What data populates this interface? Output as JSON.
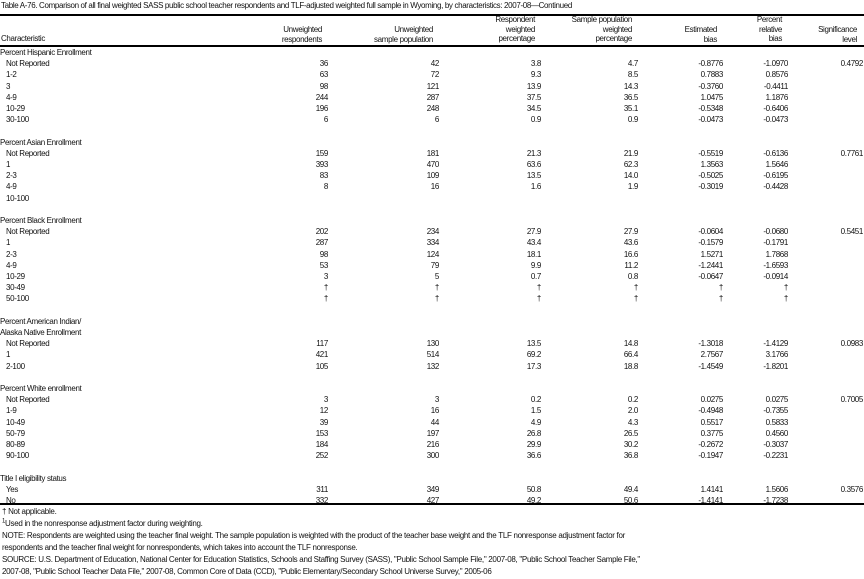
{
  "title": "Table A-76. Comparison of all final weighted SASS public school teacher respondents and TLF-adjusted weighted full sample in Wyoming, by characteristics: 2007-08—Continued",
  "headers": {
    "characteristic": "Characteristic",
    "respondents": [
      "Unweighted",
      "respondents"
    ],
    "sample_population": [
      "Unweighted",
      "sample population"
    ],
    "respondent_pct": [
      "Respondent",
      "weighted",
      "percentage"
    ],
    "sample_pct": [
      "Sample population",
      "weighted",
      "percentage"
    ],
    "est_bias": [
      "Estimated",
      "bias"
    ],
    "rel_bias": [
      "Percent",
      "relative",
      "bias"
    ],
    "significance": [
      "Significance",
      "level"
    ]
  },
  "sections": [
    {
      "label": [
        "Percent Hispanic Enrollment"
      ],
      "rows": [
        [
          "Not Reported",
          "36",
          "42",
          "3.8",
          "4.7",
          "-0.8776",
          "-1.0970",
          "0.4792"
        ],
        [
          "1-2",
          "63",
          "72",
          "9.3",
          "8.5",
          "0.7883",
          "0.8576",
          ""
        ],
        [
          "3",
          "98",
          "121",
          "13.9",
          "14.3",
          "-0.3760",
          "-0.4411",
          ""
        ],
        [
          "4-9",
          "244",
          "287",
          "37.5",
          "36.5",
          "1.0475",
          "1.1876",
          ""
        ],
        [
          "10-29",
          "196",
          "248",
          "34.5",
          "35.1",
          "-0.5348",
          "-0.6406",
          ""
        ],
        [
          "30-100",
          "6",
          "6",
          "0.9",
          "0.9",
          "-0.0473",
          "-0.0473",
          ""
        ]
      ]
    },
    {
      "label": [
        "Percent Asian Enrollment"
      ],
      "rows": [
        [
          "Not Reported",
          "159",
          "181",
          "21.3",
          "21.9",
          "-0.5519",
          "-0.6136",
          "0.7761"
        ],
        [
          "1",
          "393",
          "470",
          "63.6",
          "62.3",
          "1.3563",
          "1.5646",
          ""
        ],
        [
          "2-3",
          "83",
          "109",
          "13.5",
          "14.0",
          "-0.5025",
          "-0.6195",
          ""
        ],
        [
          "4-9",
          "8",
          "16",
          "1.6",
          "1.9",
          "-0.3019",
          "-0.4428",
          ""
        ],
        [
          "10-100",
          "",
          "",
          "",
          "",
          "",
          "",
          ""
        ]
      ]
    },
    {
      "label": [
        "Percent Black Enrollment"
      ],
      "rows": [
        [
          "Not Reported",
          "202",
          "234",
          "27.9",
          "27.9",
          "-0.0604",
          "-0.0680",
          "0.5451"
        ],
        [
          "1",
          "287",
          "334",
          "43.4",
          "43.6",
          "-0.1579",
          "-0.1791",
          ""
        ],
        [
          "2-3",
          "98",
          "124",
          "18.1",
          "16.6",
          "1.5271",
          "1.7868",
          ""
        ],
        [
          "4-9",
          "53",
          "79",
          "9.9",
          "11.2",
          "-1.2441",
          "-1.6593",
          ""
        ],
        [
          "10-29",
          "3",
          "5",
          "0.7",
          "0.8",
          "-0.0647",
          "-0.0914",
          ""
        ],
        [
          "30-49",
          "†",
          "†",
          "†",
          "†",
          "†",
          "†",
          ""
        ],
        [
          "50-100",
          "†",
          "†",
          "†",
          "†",
          "†",
          "†",
          ""
        ]
      ]
    },
    {
      "label": [
        "Percent American Indian/",
        "Alaska Native Enrollment"
      ],
      "rows": [
        [
          "Not Reported",
          "117",
          "130",
          "13.5",
          "14.8",
          "-1.3018",
          "-1.4129",
          "0.0983"
        ],
        [
          "1",
          "421",
          "514",
          "69.2",
          "66.4",
          "2.7567",
          "3.1766",
          ""
        ],
        [
          "2-100",
          "105",
          "132",
          "17.3",
          "18.8",
          "-1.4549",
          "-1.8201",
          ""
        ]
      ]
    },
    {
      "label": [
        "Percent White enrollment"
      ],
      "rows": [
        [
          "Not Reported",
          "3",
          "3",
          "0.2",
          "0.2",
          "0.0275",
          "0.0275",
          "0.7005"
        ],
        [
          "1-9",
          "12",
          "16",
          "1.5",
          "2.0",
          "-0.4948",
          "-0.7355",
          ""
        ],
        [
          "10-49",
          "39",
          "44",
          "4.9",
          "4.3",
          "0.5517",
          "0.5833",
          ""
        ],
        [
          "50-79",
          "153",
          "197",
          "26.8",
          "26.5",
          "0.3775",
          "0.4560",
          ""
        ],
        [
          "80-89",
          "184",
          "216",
          "29.9",
          "30.2",
          "-0.2672",
          "-0.3037",
          ""
        ],
        [
          "90-100",
          "252",
          "300",
          "36.6",
          "36.8",
          "-0.1947",
          "-0.2231",
          ""
        ]
      ]
    },
    {
      "label": [
        "Title I eligibility status"
      ],
      "rows": [
        [
          "Yes",
          "311",
          "349",
          "50.8",
          "49.4",
          "1.4141",
          "1.5606",
          "0.3576"
        ],
        [
          "No",
          "332",
          "427",
          "49.2",
          "50.6",
          "-1.4141",
          "-1.7238",
          ""
        ]
      ]
    }
  ],
  "footnotes": {
    "dagger": "† Not applicable.",
    "note1_mark": "1",
    "note1": "Used in the nonresponse adjustment factor during weighting.",
    "note": "NOTE: Respondents are weighted using the teacher final weight. The sample population is weighted with the product of the teacher base weight and the TLF nonresponse adjustment factor for",
    "note_cont": "respondents and the teacher final weight for nonrespondents, which takes into account the TLF nonresponse.",
    "source": "SOURCE: U.S. Department of Education, National Center for Education Statistics, Schools and Staffing Survey (SASS), \"Public School Sample File,\" 2007-08, \"Public School Teacher Sample File,\"",
    "source_cont": "2007-08, \"Public School Teacher Data File,\" 2007-08, Common Core of Data (CCD), \"Public Elementary/Secondary School Universe Survey,\" 2005-06"
  }
}
